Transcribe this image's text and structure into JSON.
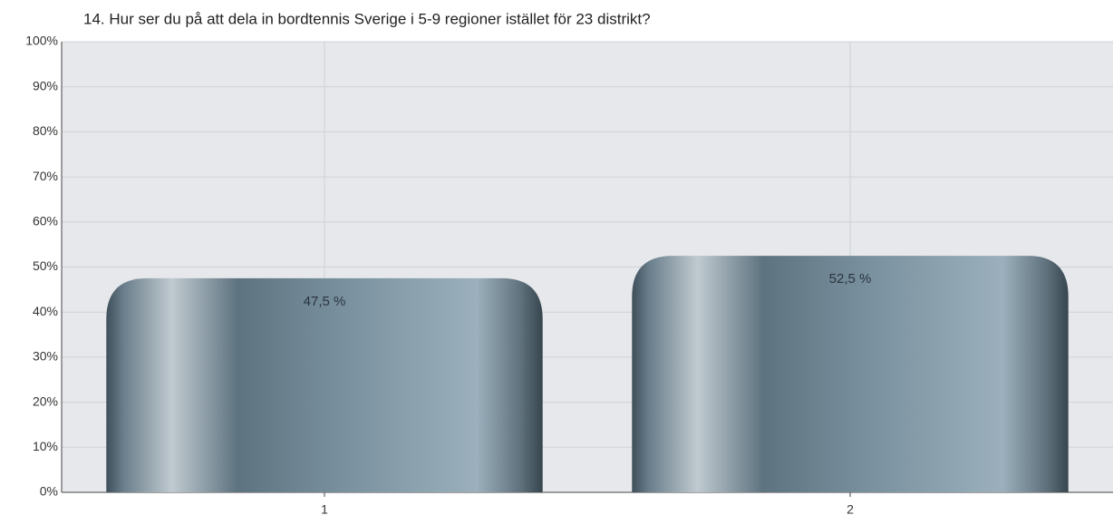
{
  "chart_data": {
    "type": "bar",
    "title": "14. Hur ser du på att dela in bordtennis Sverige i 5-9 regioner istället för 23 distrikt?",
    "categories": [
      "1",
      "2"
    ],
    "values": [
      47.5,
      52.5
    ],
    "value_labels": [
      "47,5 %",
      "52,5 %"
    ],
    "color": "#7a919f",
    "ylim": [
      0,
      100
    ],
    "yticks": [
      {
        "value": 0,
        "label": "0%"
      },
      {
        "value": 10,
        "label": "10%"
      },
      {
        "value": 20,
        "label": "20%"
      },
      {
        "value": 30,
        "label": "30%"
      },
      {
        "value": 40,
        "label": "40%"
      },
      {
        "value": 50,
        "label": "50%"
      },
      {
        "value": 60,
        "label": "60%"
      },
      {
        "value": 70,
        "label": "70%"
      },
      {
        "value": 80,
        "label": "80%"
      },
      {
        "value": 90,
        "label": "90%"
      },
      {
        "value": 100,
        "label": "100%"
      }
    ],
    "grid": true
  }
}
